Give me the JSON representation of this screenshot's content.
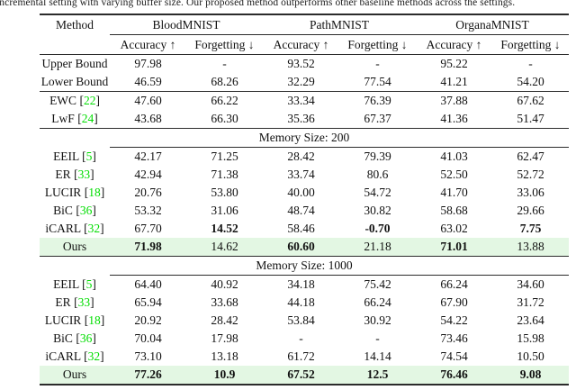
{
  "caption": "incremental setting with varying buffer size. Our proposed method outperforms other baseline methods across the settings.",
  "colors": {
    "citation": "#00dd00",
    "highlight_bg": "#e3f7e3"
  },
  "table": {
    "method_header": "Method",
    "groups": [
      "BloodMNIST",
      "PathMNIST",
      "OrganaMNIST"
    ],
    "accuracy_label": "Accuracy ↑",
    "forgetting_label": "Forgetting ↓",
    "rows": [
      {
        "type": "data",
        "method": "Upper Bound",
        "cite": "",
        "values": [
          "97.98",
          "-",
          "93.52",
          "-",
          "95.22",
          "-"
        ],
        "bold": [],
        "highlight": false
      },
      {
        "type": "data",
        "method": "Lower Bound",
        "cite": "",
        "values": [
          "46.59",
          "68.26",
          "32.29",
          "77.54",
          "41.21",
          "54.20"
        ],
        "bold": [],
        "highlight": false
      },
      {
        "type": "data",
        "method": "EWC",
        "cite": "22",
        "values": [
          "47.60",
          "66.22",
          "33.34",
          "76.39",
          "37.88",
          "67.62"
        ],
        "bold": [],
        "highlight": false,
        "group_start": true
      },
      {
        "type": "data",
        "method": "LwF",
        "cite": "24",
        "values": [
          "43.68",
          "66.30",
          "35.36",
          "67.37",
          "41.36",
          "51.47"
        ],
        "bold": [],
        "highlight": false
      },
      {
        "type": "section",
        "title": "Memory Size: 200"
      },
      {
        "type": "data",
        "method": "EEIL",
        "cite": "5",
        "values": [
          "42.17",
          "71.25",
          "28.42",
          "79.39",
          "41.03",
          "62.47"
        ],
        "bold": [],
        "highlight": false
      },
      {
        "type": "data",
        "method": "ER",
        "cite": "33",
        "values": [
          "42.94",
          "71.38",
          "33.74",
          "80.6",
          "52.50",
          "52.72"
        ],
        "bold": [],
        "highlight": false
      },
      {
        "type": "data",
        "method": "LUCIR",
        "cite": "18",
        "values": [
          "20.76",
          "53.80",
          "40.00",
          "54.72",
          "41.70",
          "33.06"
        ],
        "bold": [],
        "highlight": false
      },
      {
        "type": "data",
        "method": "BiC",
        "cite": "36",
        "values": [
          "53.32",
          "31.06",
          "48.74",
          "30.82",
          "58.68",
          "29.66"
        ],
        "bold": [],
        "highlight": false
      },
      {
        "type": "data",
        "method": "iCARL",
        "cite": "32",
        "values": [
          "67.70",
          "14.52",
          "58.46",
          "-0.70",
          "63.02",
          "7.75"
        ],
        "bold": [
          1,
          3,
          5
        ],
        "highlight": false
      },
      {
        "type": "data",
        "method": "Ours",
        "cite": "",
        "values": [
          "71.98",
          "14.62",
          "60.60",
          "21.18",
          "71.01",
          "13.88"
        ],
        "bold": [
          0,
          2,
          4
        ],
        "highlight": true
      },
      {
        "type": "section",
        "title": "Memory Size: 1000"
      },
      {
        "type": "data",
        "method": "EEIL",
        "cite": "5",
        "values": [
          "64.40",
          "40.92",
          "34.18",
          "75.42",
          "66.24",
          "34.60"
        ],
        "bold": [],
        "highlight": false
      },
      {
        "type": "data",
        "method": "ER",
        "cite": "33",
        "values": [
          "65.94",
          "33.68",
          "44.18",
          "66.24",
          "67.90",
          "31.72"
        ],
        "bold": [],
        "highlight": false
      },
      {
        "type": "data",
        "method": "LUCIR",
        "cite": "18",
        "values": [
          "20.92",
          "28.42",
          "53.84",
          "30.92",
          "54.22",
          "23.64"
        ],
        "bold": [],
        "highlight": false
      },
      {
        "type": "data",
        "method": "BiC",
        "cite": "36",
        "values": [
          "70.04",
          "17.98",
          "-",
          "-",
          "73.46",
          "15.98"
        ],
        "bold": [],
        "highlight": false
      },
      {
        "type": "data",
        "method": "iCARL",
        "cite": "32",
        "values": [
          "73.10",
          "13.18",
          "61.72",
          "14.14",
          "74.54",
          "10.50"
        ],
        "bold": [],
        "highlight": false
      },
      {
        "type": "data",
        "method": "Ours",
        "cite": "",
        "values": [
          "77.26",
          "10.9",
          "67.52",
          "12.5",
          "76.46",
          "9.08"
        ],
        "bold": [
          0,
          1,
          2,
          3,
          4,
          5
        ],
        "highlight": true
      }
    ]
  }
}
